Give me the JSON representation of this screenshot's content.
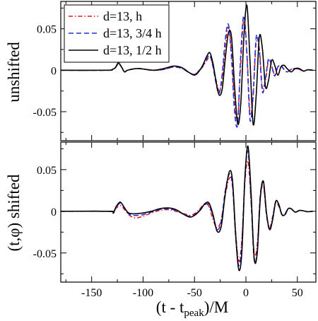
{
  "chart_data": [
    {
      "type": "line",
      "panel": "top",
      "ylabel": "unshifted",
      "xlabel": "",
      "xlim": [
        -180,
        68
      ],
      "ylim": [
        -0.085,
        0.083
      ],
      "xticks": [
        -150,
        -100,
        -50,
        0,
        50
      ],
      "xtick_labels_shown": false,
      "yticks": [
        -0.05,
        0,
        0.05
      ],
      "ytick_labels": [
        "-0.05",
        "0",
        "0.05"
      ],
      "grid": false,
      "legend": {
        "placement": "top-left",
        "entries": [
          "d=13, h",
          "d=13, 3/4 h",
          "d=13, 1/2 h"
        ]
      },
      "series": [
        {
          "name": "d=13, h",
          "color": "#e8141c",
          "style": "dash-dot",
          "x": [
            -180,
            -135,
            -130,
            -127,
            -124,
            -121,
            -118,
            -115,
            -105,
            -90,
            -80,
            -70,
            -62,
            -55,
            -50,
            -46,
            -42,
            -38,
            -35,
            -32,
            -29,
            -26,
            -23,
            -20,
            -17,
            -14,
            -11,
            -8,
            -5,
            -2,
            1,
            4,
            7,
            10,
            13,
            16,
            19,
            22,
            25,
            28,
            31,
            34,
            37,
            40,
            44,
            48,
            52,
            56,
            60,
            65
          ],
          "y": [
            0,
            0,
            0.001,
            0.003,
            0.008,
            0.004,
            -0.002,
            0,
            0.002,
            0.0,
            0.001,
            0.004,
            0.002,
            -0.003,
            -0.005,
            -0.001,
            0.004,
            0.012,
            0.016,
            0.006,
            -0.012,
            -0.025,
            -0.01,
            0.03,
            0.052,
            0.022,
            -0.04,
            -0.058,
            0.01,
            0.062,
            0.02,
            -0.052,
            -0.03,
            0.035,
            0.026,
            -0.022,
            -0.012,
            0.012,
            0.006,
            -0.006,
            0.004,
            0.005,
            0.001,
            -0.002,
            0.001,
            0.002,
            0.001,
            -0.001,
            0.0005,
            0
          ]
        },
        {
          "name": "d=13, 3/4 h",
          "color": "#1f30d8",
          "style": "dashed",
          "x": [
            -180,
            -135,
            -130,
            -127,
            -124,
            -121,
            -118,
            -115,
            -105,
            -90,
            -80,
            -70,
            -62,
            -55,
            -50,
            -46,
            -42,
            -38,
            -35,
            -32,
            -29,
            -26,
            -23,
            -20,
            -17,
            -14,
            -11,
            -8,
            -5,
            -2,
            1,
            4,
            7,
            10,
            13,
            16,
            19,
            22,
            25,
            28,
            31,
            34,
            37,
            40,
            44,
            48,
            52,
            56,
            60,
            65
          ],
          "y": [
            0,
            0,
            0.001,
            0.003,
            0.008,
            0.004,
            -0.002,
            0,
            0.002,
            0.0,
            0.001,
            0.004,
            0.002,
            -0.003,
            -0.005,
            -0.001,
            0.005,
            0.014,
            0.018,
            0.004,
            -0.016,
            -0.028,
            -0.004,
            0.038,
            0.055,
            0.014,
            -0.05,
            -0.064,
            0.02,
            0.066,
            0.018,
            -0.06,
            -0.03,
            0.04,
            0.024,
            -0.026,
            -0.01,
            0.014,
            0.005,
            -0.007,
            0.004,
            0.006,
            0.001,
            -0.002,
            0.001,
            0.002,
            0.001,
            -0.001,
            0.0005,
            0
          ]
        },
        {
          "name": "d=13, 1/2 h",
          "color": "#000000",
          "style": "solid",
          "x": [
            -180,
            -135,
            -130,
            -127,
            -124,
            -121,
            -118,
            -115,
            -105,
            -90,
            -80,
            -70,
            -62,
            -55,
            -50,
            -46,
            -42,
            -38,
            -35,
            -32,
            -29,
            -26,
            -23,
            -20,
            -17,
            -14,
            -11,
            -8,
            -5,
            -2,
            1,
            4,
            7,
            10,
            13,
            16,
            19,
            22,
            25,
            28,
            31,
            34,
            37,
            40,
            44,
            48,
            52,
            56,
            60,
            65
          ],
          "y": [
            0,
            0,
            0.001,
            0.003,
            0.009,
            0.004,
            -0.002,
            0,
            0.002,
            0.0,
            0.002,
            0.005,
            0.003,
            -0.003,
            -0.006,
            -0.002,
            0.006,
            0.017,
            0.021,
            0.008,
            -0.014,
            -0.03,
            -0.022,
            0.015,
            0.045,
            0.04,
            -0.02,
            -0.065,
            -0.04,
            0.04,
            0.078,
            0.01,
            -0.065,
            -0.03,
            0.04,
            0.026,
            -0.02,
            -0.012,
            0.012,
            0.006,
            -0.006,
            0.004,
            0.006,
            0.002,
            -0.002,
            0.002,
            0.002,
            -0.001,
            0.0005,
            0
          ]
        }
      ]
    },
    {
      "type": "line",
      "panel": "bottom",
      "ylabel": "(t,φ) shifted",
      "xlabel": "(t - t",
      "xlabel_sub": "peak",
      "xlabel_tail": ")/M",
      "xlim": [
        -180,
        68
      ],
      "ylim": [
        -0.085,
        0.083
      ],
      "xticks": [
        -150,
        -100,
        -50,
        0,
        50
      ],
      "xtick_labels": [
        "-150",
        "-100",
        "-50",
        "0",
        "50"
      ],
      "yticks": [
        -0.05,
        0,
        0.05
      ],
      "ytick_labels": [
        "-0.05",
        "0",
        "0.05"
      ],
      "grid": false,
      "series": [
        {
          "name": "d=13, h",
          "color": "#e8141c",
          "style": "dash-dot",
          "x": [
            -180,
            -133,
            -129,
            -126,
            -122,
            -118,
            -114,
            -108,
            -100,
            -92,
            -84,
            -76,
            -68,
            -60,
            -54,
            -49,
            -44,
            -40,
            -36,
            -32,
            -28,
            -24,
            -20,
            -16,
            -13,
            -10,
            -7,
            -4,
            -1,
            2,
            5,
            8,
            11,
            14,
            17,
            20,
            23,
            26,
            29,
            32,
            35,
            38,
            41,
            44,
            48,
            52,
            56,
            60,
            65
          ],
          "y": [
            0,
            0,
            0.0,
            0.004,
            0.007,
            0.002,
            -0.004,
            -0.008,
            -0.006,
            -0.002,
            0.001,
            0.002,
            0.0,
            -0.003,
            -0.005,
            -0.002,
            0.004,
            0.009,
            0.006,
            -0.01,
            -0.02,
            -0.01,
            0.02,
            0.04,
            0.03,
            -0.025,
            -0.06,
            -0.035,
            0.035,
            0.06,
            0.012,
            -0.05,
            -0.04,
            0.018,
            0.03,
            -0.004,
            -0.02,
            -0.006,
            0.01,
            0.006,
            -0.004,
            -0.003,
            0.003,
            0.003,
            -0.001,
            0.001,
            0.0005,
            -0.0005,
            0
          ]
        },
        {
          "name": "d=13, 3/4 h",
          "color": "#1f30d8",
          "style": "dashed",
          "x": [
            -180,
            -133,
            -129,
            -126,
            -122,
            -118,
            -114,
            -108,
            -100,
            -92,
            -84,
            -76,
            -68,
            -60,
            -54,
            -49,
            -44,
            -40,
            -36,
            -32,
            -28,
            -24,
            -20,
            -16,
            -13,
            -10,
            -7,
            -4,
            -1,
            2,
            5,
            8,
            11,
            14,
            17,
            20,
            23,
            26,
            29,
            32,
            35,
            38,
            41,
            44,
            48,
            52,
            56,
            60,
            65
          ],
          "y": [
            0,
            0,
            -0.001,
            0.005,
            0.01,
            0.004,
            -0.003,
            -0.005,
            -0.004,
            -0.001,
            0.002,
            0.003,
            0.001,
            -0.004,
            -0.006,
            -0.003,
            0.003,
            0.008,
            0.008,
            -0.006,
            -0.022,
            -0.012,
            0.025,
            0.045,
            0.03,
            -0.03,
            -0.065,
            -0.04,
            0.04,
            0.072,
            0.014,
            -0.058,
            -0.046,
            0.02,
            0.034,
            -0.004,
            -0.022,
            -0.008,
            0.012,
            0.007,
            -0.004,
            -0.003,
            0.003,
            0.003,
            -0.001,
            0.001,
            0.0005,
            -0.0005,
            0
          ]
        },
        {
          "name": "d=13, 1/2 h",
          "color": "#000000",
          "style": "solid",
          "x": [
            -180,
            -133,
            -129,
            -126,
            -122,
            -118,
            -114,
            -108,
            -100,
            -92,
            -84,
            -76,
            -68,
            -60,
            -54,
            -49,
            -44,
            -40,
            -36,
            -32,
            -28,
            -24,
            -20,
            -16,
            -13,
            -10,
            -7,
            -4,
            -1,
            2,
            5,
            8,
            11,
            14,
            17,
            20,
            23,
            26,
            29,
            32,
            35,
            38,
            41,
            44,
            48,
            52,
            56,
            60,
            65
          ],
          "y": [
            0,
            0,
            -0.002,
            0.006,
            0.011,
            0.004,
            -0.002,
            -0.003,
            -0.002,
            0.0,
            0.003,
            0.004,
            0.002,
            -0.004,
            -0.007,
            -0.004,
            0.002,
            0.009,
            0.01,
            -0.004,
            -0.024,
            -0.018,
            0.022,
            0.048,
            0.036,
            -0.028,
            -0.07,
            -0.05,
            0.04,
            0.078,
            0.022,
            -0.056,
            -0.05,
            0.016,
            0.036,
            -0.002,
            -0.022,
            -0.01,
            0.012,
            0.008,
            -0.004,
            -0.004,
            0.003,
            0.003,
            -0.001,
            0.001,
            0.0005,
            -0.0005,
            0
          ]
        }
      ]
    }
  ]
}
